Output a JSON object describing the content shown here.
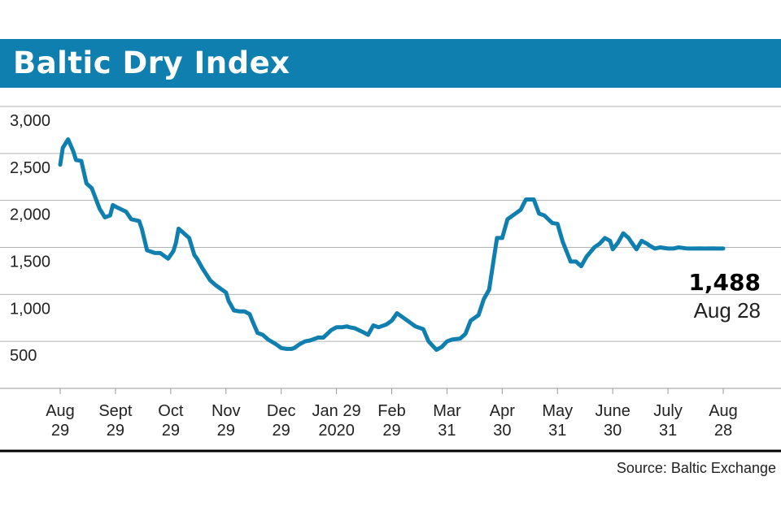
{
  "chart_data": {
    "type": "line",
    "title": "Baltic Dry Index",
    "source": "Source: Baltic Exchange",
    "line_color": "#0f7fb0",
    "title_bar_color": "#0f7fb0",
    "ylim": [
      0,
      3000
    ],
    "yticks": [
      {
        "value": 3000,
        "label": "3,000"
      },
      {
        "value": 2500,
        "label": "2,500"
      },
      {
        "value": 2000,
        "label": "2,000"
      },
      {
        "value": 1500,
        "label": "1,500"
      },
      {
        "value": 1000,
        "label": "1,000"
      },
      {
        "value": 500,
        "label": "500"
      }
    ],
    "xticks": [
      {
        "index": 0,
        "line1": "Aug",
        "line2": "29"
      },
      {
        "index": 21,
        "line1": "Sept",
        "line2": "29"
      },
      {
        "index": 42,
        "line1": "Oct",
        "line2": "29"
      },
      {
        "index": 63,
        "line1": "Nov",
        "line2": "29"
      },
      {
        "index": 84,
        "line1": "Dec",
        "line2": "29"
      },
      {
        "index": 105,
        "line1": "Jan 29",
        "line2": "2020"
      },
      {
        "index": 126,
        "line1": "Feb",
        "line2": "29"
      },
      {
        "index": 147,
        "line1": "Mar",
        "line2": "31"
      },
      {
        "index": 168,
        "line1": "Apr",
        "line2": "30"
      },
      {
        "index": 189,
        "line1": "May",
        "line2": "31"
      },
      {
        "index": 210,
        "line1": "June",
        "line2": "30"
      },
      {
        "index": 231,
        "line1": "July",
        "line2": "31"
      },
      {
        "index": 252,
        "line1": "Aug",
        "line2": "28"
      }
    ],
    "last_value": {
      "value": 1488,
      "label": "1,488",
      "date": "Aug 28"
    },
    "series": [
      {
        "x": [
          0,
          1,
          3,
          5,
          6,
          8,
          10,
          12,
          15,
          17,
          19,
          20,
          22,
          25,
          27,
          30,
          31,
          33,
          36,
          38,
          41,
          43,
          44,
          45,
          47,
          49,
          51,
          52,
          54,
          57,
          59,
          61,
          63,
          64,
          66,
          68,
          70,
          72,
          73,
          75,
          77,
          79,
          82,
          84,
          86,
          88,
          89,
          91,
          93,
          95,
          98,
          100,
          103,
          105,
          107,
          109,
          110,
          112,
          115,
          117,
          119,
          121,
          124,
          126,
          128,
          131,
          133,
          135,
          138,
          140,
          143,
          145,
          147,
          149,
          152,
          154,
          156,
          159,
          161,
          163,
          166,
          168,
          170,
          173,
          175,
          177,
          180,
          182,
          184,
          187,
          189,
          191,
          194,
          196,
          198,
          200,
          203,
          205,
          207,
          209,
          210,
          212,
          214,
          216,
          217,
          219,
          221,
          223,
          224,
          226,
          228,
          231,
          233,
          235,
          238,
          240,
          243,
          245,
          248,
          250,
          252
        ],
        "values": [
          2380,
          2560,
          2650,
          2520,
          2430,
          2420,
          2180,
          2130,
          1910,
          1820,
          1840,
          1950,
          1920,
          1880,
          1800,
          1780,
          1700,
          1470,
          1440,
          1440,
          1380,
          1460,
          1550,
          1700,
          1650,
          1600,
          1420,
          1380,
          1280,
          1150,
          1100,
          1060,
          1020,
          930,
          830,
          820,
          820,
          790,
          720,
          590,
          570,
          520,
          470,
          430,
          420,
          420,
          430,
          470,
          500,
          510,
          540,
          540,
          620,
          650,
          650,
          660,
          650,
          640,
          600,
          570,
          670,
          650,
          680,
          720,
          800,
          740,
          700,
          660,
          630,
          500,
          410,
          440,
          500,
          520,
          530,
          580,
          720,
          780,
          950,
          1050,
          1600,
          1600,
          1800,
          1860,
          1900,
          2010,
          2010,
          1860,
          1840,
          1760,
          1750,
          1560,
          1350,
          1350,
          1300,
          1400,
          1500,
          1540,
          1600,
          1570,
          1480,
          1550,
          1650,
          1600,
          1560,
          1480,
          1570,
          1540,
          1520,
          1488,
          1500,
          1488,
          1488,
          1500,
          1490,
          1488,
          1490,
          1488,
          1490,
          1488,
          1488
        ]
      }
    ]
  }
}
